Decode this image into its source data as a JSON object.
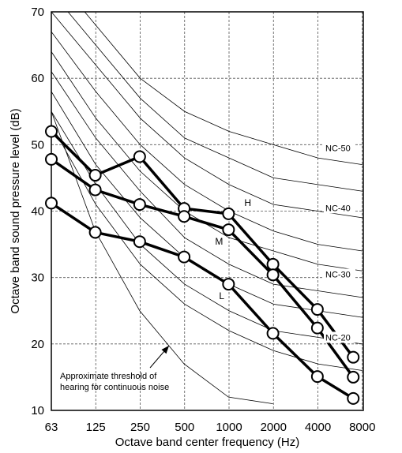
{
  "chart_data": {
    "type": "line",
    "xlabel": "Octave band center frequency (Hz)",
    "ylabel": "Octave band  sound pressure level (dB)",
    "x_tick_labels": [
      "63",
      "125",
      "250",
      "500",
      "1000",
      "2000",
      "4000",
      "8000"
    ],
    "y_ticks": [
      10,
      20,
      30,
      40,
      50,
      60,
      70
    ],
    "ylim": [
      10,
      70
    ],
    "x_scale": "log",
    "grid": true,
    "nc_curves": [
      {
        "values": [
          76,
          68,
          60,
          55,
          52,
          50,
          48,
          47
        ]
      },
      {
        "values": [
          73,
          65,
          57,
          51,
          48,
          45,
          44,
          43
        ]
      },
      {
        "values": [
          70,
          62,
          54,
          48,
          44,
          41,
          40,
          39
        ]
      },
      {
        "values": [
          67,
          58,
          50,
          44,
          40,
          37,
          35,
          34
        ]
      },
      {
        "values": [
          64,
          54,
          46,
          40,
          36,
          34,
          32,
          31
        ]
      },
      {
        "values": [
          61,
          51,
          43,
          36,
          32,
          29,
          28,
          27
        ]
      },
      {
        "values": [
          58,
          47,
          39,
          33,
          29,
          26,
          25,
          24
        ]
      },
      {
        "values": [
          55,
          44,
          35,
          29,
          25,
          22,
          21,
          20
        ]
      },
      {
        "values": [
          53,
          41,
          32,
          26,
          22,
          19,
          17,
          16
        ]
      }
    ],
    "threshold_curve": {
      "x": [
        63,
        125,
        250,
        500,
        1000,
        2000
      ],
      "values": [
        55,
        37,
        25,
        17,
        12,
        11
      ]
    },
    "nc_labels": [
      {
        "text": "NC-50",
        "level": 49.5
      },
      {
        "text": "NC-40",
        "level": 40.5
      },
      {
        "text": "NC-30",
        "level": 30.5
      },
      {
        "text": "NC-20",
        "level": 21
      }
    ],
    "series": [
      {
        "name": "H",
        "x": [
          63,
          125,
          250,
          500,
          1000,
          2000,
          4000,
          7000
        ],
        "values": [
          52,
          45.4,
          48.2,
          40.4,
          39.6,
          32,
          25.2,
          18
        ]
      },
      {
        "name": "M",
        "x": [
          63,
          125,
          250,
          500,
          1000,
          2000,
          4000,
          7000
        ],
        "values": [
          47.8,
          43.2,
          41,
          39.2,
          37.2,
          30.4,
          22.4,
          15
        ]
      },
      {
        "name": "L",
        "x": [
          63,
          125,
          250,
          500,
          1000,
          2000,
          4000,
          7000
        ],
        "values": [
          41.2,
          36.8,
          35.4,
          33.1,
          29,
          21.6,
          15.1,
          11.8
        ]
      }
    ],
    "annotation": {
      "lines": [
        "Approximate threshold of",
        "hearing for continuous noise"
      ]
    }
  }
}
